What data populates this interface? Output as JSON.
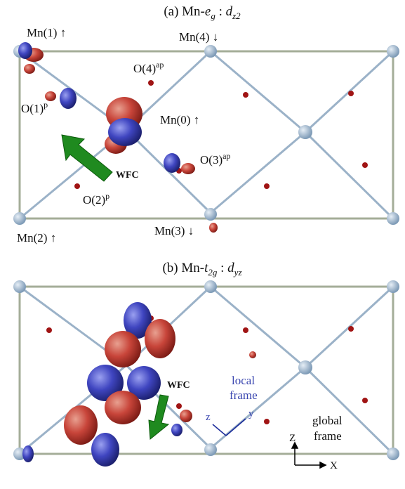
{
  "panels": [
    {
      "title": {
        "prefix": "(a) Mn-",
        "sym": "e",
        "sub": "g",
        "sep": " : ",
        "sym2": "d",
        "sub2": "z2"
      },
      "labels": {
        "mn1": "Mn(1) ↑",
        "mn4": "Mn(4) ↓",
        "o4": "O(4)",
        "o4sup": "ap",
        "o1": "O(1)",
        "o1sup": "p",
        "mn0": "Mn(0) ↑",
        "o3": "O(3)",
        "o3sup": "ap",
        "wfc": "WFC",
        "o2": "O(2)",
        "o2sup": "p",
        "mn2": "Mn(2) ↑",
        "mn3": "Mn(3) ↓"
      }
    },
    {
      "title": {
        "prefix": "(b) Mn-",
        "sym": "t",
        "sub": "2g",
        "sep": " : ",
        "sym2": "d",
        "sub2": "yz"
      },
      "labels": {
        "wfc": "WFC",
        "local": "local",
        "local_frame": "frame",
        "z": "z",
        "y": "y",
        "global": "global",
        "global_frame": "frame",
        "gz": "Z",
        "gx": "X"
      }
    }
  ]
}
